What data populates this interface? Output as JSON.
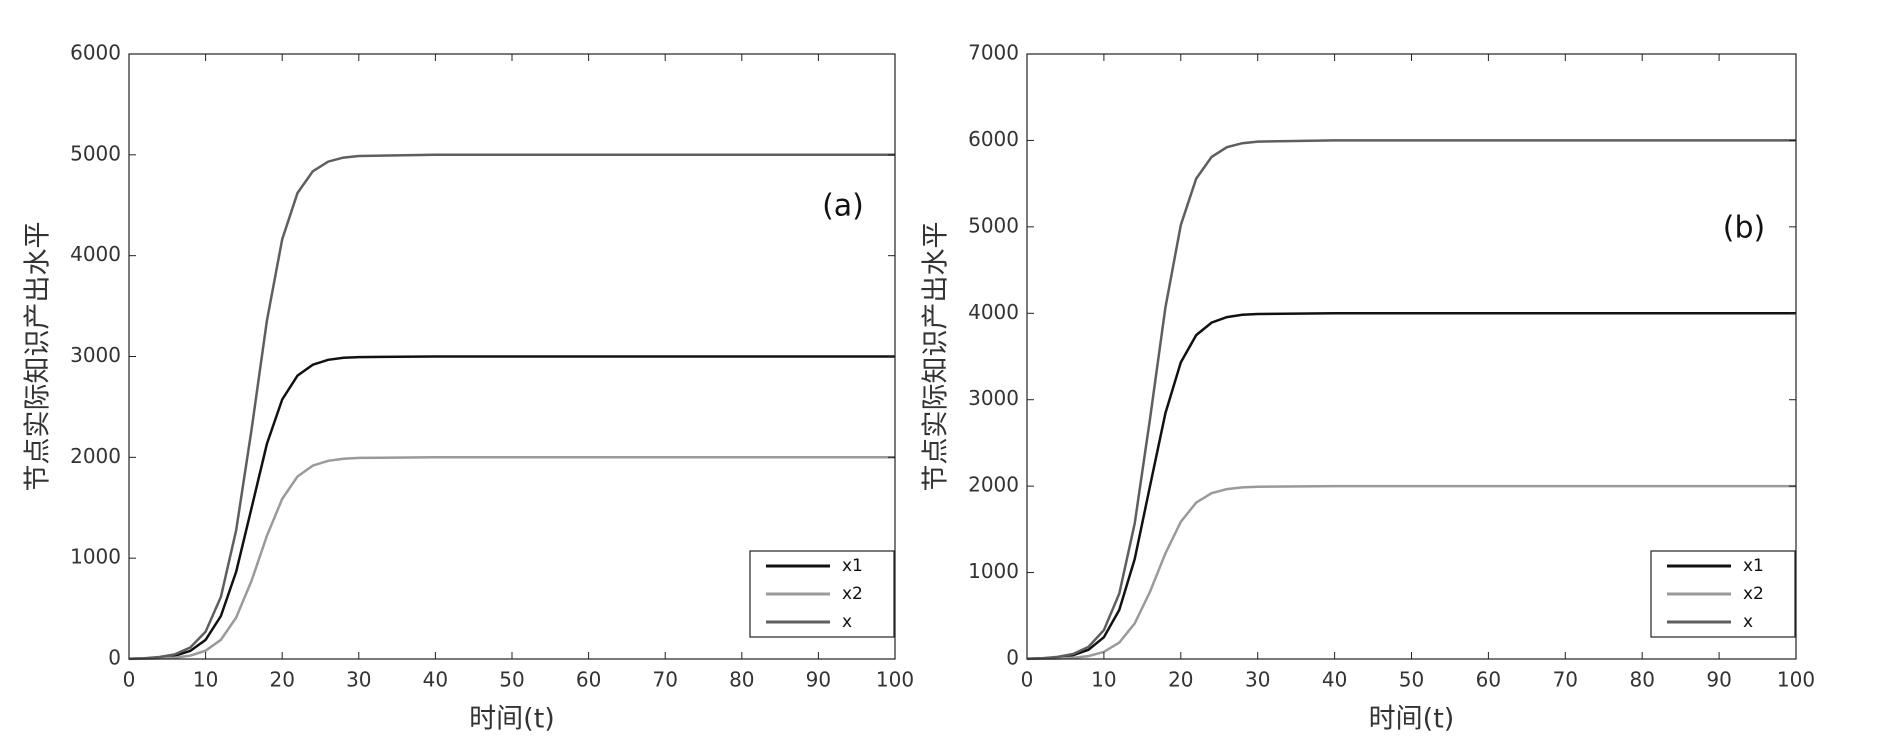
{
  "chart_data": [
    {
      "type": "line",
      "annotation": "(a)",
      "xlabel": "时间(t)",
      "ylabel": "节点实际知识产出水平",
      "x": [
        0,
        2,
        4,
        6,
        8,
        10,
        12,
        14,
        16,
        18,
        20,
        22,
        24,
        26,
        28,
        30,
        40,
        50,
        60,
        70,
        80,
        90,
        100
      ],
      "series": [
        {
          "name": "x1",
          "color": "#111111",
          "values": [
            2,
            5,
            14,
            33,
            80,
            189,
            426,
            867,
            1500,
            2133,
            2574,
            2811,
            2919,
            2967,
            2987,
            2994,
            3000,
            3000,
            3000,
            3000,
            3000,
            3000,
            3000
          ]
        },
        {
          "name": "x2",
          "color": "#9a9a9a",
          "values": [
            1,
            2,
            6,
            14,
            34,
            82,
            190,
            412,
            778,
            1222,
            1588,
            1810,
            1918,
            1966,
            1986,
            1994,
            2000,
            2000,
            2000,
            2000,
            2000,
            2000,
            2000
          ]
        },
        {
          "name": "x",
          "color": "#5e5e5e",
          "values": [
            3,
            7,
            20,
            47,
            114,
            271,
            616,
            1279,
            2278,
            3355,
            4162,
            4621,
            4837,
            4933,
            4973,
            4988,
            5000,
            5000,
            5000,
            5000,
            5000,
            5000,
            5000
          ]
        }
      ],
      "xlim": [
        0,
        100
      ],
      "xticks": [
        0,
        10,
        20,
        30,
        40,
        50,
        60,
        70,
        80,
        90,
        100
      ],
      "ylim": [
        0,
        6000
      ],
      "yticks": [
        0,
        1000,
        2000,
        3000,
        4000,
        5000,
        6000
      ],
      "legend": "lower right"
    },
    {
      "type": "line",
      "annotation": "(b)",
      "xlabel": "时间(t)",
      "ylabel": "节点实际知识产出水平",
      "x": [
        0,
        2,
        4,
        6,
        8,
        10,
        12,
        14,
        16,
        18,
        20,
        22,
        24,
        26,
        28,
        30,
        40,
        50,
        60,
        70,
        80,
        90,
        100
      ],
      "series": [
        {
          "name": "x1",
          "color": "#111111",
          "values": [
            3,
            7,
            18,
            44,
            106,
            252,
            568,
            1156,
            2000,
            2844,
            3432,
            3748,
            3892,
            3956,
            3982,
            3992,
            4000,
            4000,
            4000,
            4000,
            4000,
            4000,
            4000
          ]
        },
        {
          "name": "x2",
          "color": "#9a9a9a",
          "values": [
            1,
            2,
            6,
            14,
            34,
            82,
            190,
            412,
            778,
            1222,
            1588,
            1810,
            1918,
            1966,
            1986,
            1994,
            2000,
            2000,
            2000,
            2000,
            2000,
            2000,
            2000
          ]
        },
        {
          "name": "x",
          "color": "#5e5e5e",
          "values": [
            4,
            9,
            24,
            58,
            140,
            334,
            758,
            1568,
            2778,
            4066,
            5020,
            5558,
            5810,
            5922,
            5968,
            5986,
            6000,
            6000,
            6000,
            6000,
            6000,
            6000,
            6000
          ]
        }
      ],
      "xlim": [
        0,
        100
      ],
      "xticks": [
        0,
        10,
        20,
        30,
        40,
        50,
        60,
        70,
        80,
        90,
        100
      ],
      "ylim": [
        0,
        7000
      ],
      "yticks": [
        0,
        1000,
        2000,
        3000,
        4000,
        5000,
        6000,
        7000
      ],
      "legend": "lower right"
    }
  ]
}
